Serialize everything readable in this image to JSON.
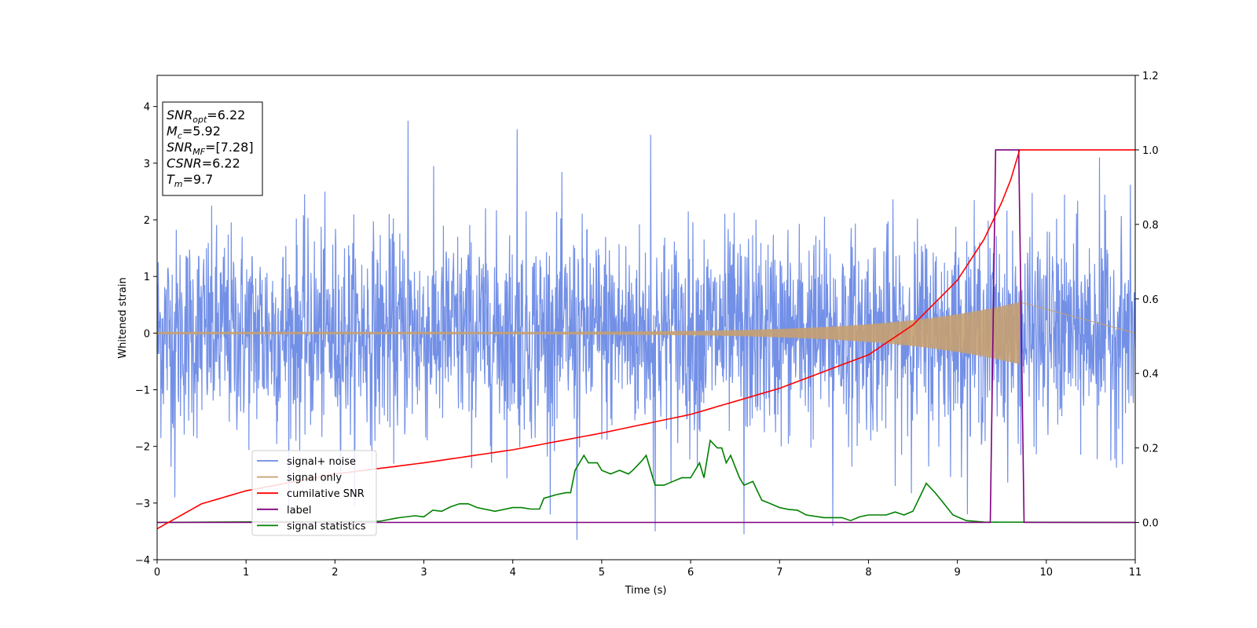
{
  "chart_data": {
    "type": "line",
    "xlabel": "Time (s)",
    "ylabel": "Whitened strain",
    "xlim": [
      0,
      11
    ],
    "ylim": [
      -4,
      4.55
    ],
    "y2lim": [
      -0.1,
      1.2
    ],
    "xticks": [
      "0",
      "1",
      "2",
      "3",
      "4",
      "5",
      "6",
      "7",
      "8",
      "9",
      "10",
      "11"
    ],
    "yticks": [
      "−4",
      "−3",
      "−2",
      "−1",
      "0",
      "1",
      "2",
      "3",
      "4"
    ],
    "y2ticks": [
      "0.0",
      "0.2",
      "0.4",
      "0.6",
      "0.8",
      "1.0",
      "1.2"
    ],
    "grid": false,
    "legend_position": "lower-left",
    "info_box": [
      {
        "base": "SNR",
        "sub": "opt",
        "value": "=6.22"
      },
      {
        "base": "M",
        "sub": "c",
        "value": "=5.92"
      },
      {
        "base": "SNR",
        "sub": "MF",
        "value": "=[7.28]"
      },
      {
        "base": "CSNR",
        "sub": "",
        "value": "=6.22"
      },
      {
        "base": "T",
        "sub": "m",
        "value": "=9.7"
      }
    ],
    "series": [
      {
        "name": "signal+ noise",
        "axis": "left",
        "color": "#6b8ae6",
        "kind": "noise",
        "x_range": [
          0,
          11
        ],
        "noise_std": 0.9,
        "peaks": [
          {
            "x": 2.82,
            "y": 3.75
          },
          {
            "x": 4.05,
            "y": 3.6
          },
          {
            "x": 5.55,
            "y": 3.5
          },
          {
            "x": 4.72,
            "y": -3.65
          },
          {
            "x": 6.6,
            "y": -3.55
          },
          {
            "x": 5.6,
            "y": -3.5
          },
          {
            "x": 0.2,
            "y": -2.9
          },
          {
            "x": 7.6,
            "y": -3.4
          },
          {
            "x": 10.6,
            "y": 3.1
          }
        ]
      },
      {
        "name": "signal only",
        "axis": "left",
        "color": "#c7a070",
        "kind": "chirp",
        "x_range": [
          0,
          9.7
        ],
        "amplitude_start": 0.02,
        "amplitude_end": 0.55
      },
      {
        "name": "cumilative SNR",
        "axis": "right",
        "color": "#ff0000",
        "points": [
          [
            0,
            -0.017
          ],
          [
            0.5,
            0.05
          ],
          [
            1,
            0.085
          ],
          [
            2,
            0.13
          ],
          [
            3,
            0.16
          ],
          [
            4,
            0.195
          ],
          [
            5,
            0.24
          ],
          [
            6,
            0.29
          ],
          [
            7,
            0.36
          ],
          [
            8,
            0.45
          ],
          [
            8.5,
            0.53
          ],
          [
            9,
            0.65
          ],
          [
            9.3,
            0.76
          ],
          [
            9.5,
            0.86
          ],
          [
            9.6,
            0.92
          ],
          [
            9.7,
            1.0
          ],
          [
            11,
            1.0
          ]
        ]
      },
      {
        "name": "label",
        "axis": "right",
        "color": "#800080",
        "points": [
          [
            0,
            0.0
          ],
          [
            9.37,
            0.0
          ],
          [
            9.43,
            1.0
          ],
          [
            9.69,
            1.0
          ],
          [
            9.75,
            0.0
          ],
          [
            11,
            0.0
          ]
        ]
      },
      {
        "name": "signal statistics",
        "axis": "right",
        "color": "#008000",
        "points": [
          [
            0,
            0.0
          ],
          [
            2.5,
            0.003
          ],
          [
            2.7,
            0.012
          ],
          [
            2.9,
            0.018
          ],
          [
            3.0,
            0.015
          ],
          [
            3.1,
            0.033
          ],
          [
            3.2,
            0.03
          ],
          [
            3.3,
            0.042
          ],
          [
            3.4,
            0.05
          ],
          [
            3.5,
            0.05
          ],
          [
            3.6,
            0.04
          ],
          [
            3.8,
            0.03
          ],
          [
            4.0,
            0.04
          ],
          [
            4.1,
            0.04
          ],
          [
            4.2,
            0.036
          ],
          [
            4.3,
            0.036
          ],
          [
            4.35,
            0.065
          ],
          [
            4.5,
            0.075
          ],
          [
            4.6,
            0.08
          ],
          [
            4.65,
            0.08
          ],
          [
            4.7,
            0.14
          ],
          [
            4.8,
            0.18
          ],
          [
            4.85,
            0.16
          ],
          [
            4.95,
            0.16
          ],
          [
            5.0,
            0.14
          ],
          [
            5.1,
            0.13
          ],
          [
            5.2,
            0.14
          ],
          [
            5.3,
            0.13
          ],
          [
            5.35,
            0.14
          ],
          [
            5.45,
            0.165
          ],
          [
            5.5,
            0.18
          ],
          [
            5.6,
            0.1
          ],
          [
            5.7,
            0.1
          ],
          [
            5.8,
            0.11
          ],
          [
            5.9,
            0.12
          ],
          [
            6.0,
            0.12
          ],
          [
            6.1,
            0.16
          ],
          [
            6.15,
            0.12
          ],
          [
            6.22,
            0.22
          ],
          [
            6.3,
            0.2
          ],
          [
            6.35,
            0.2
          ],
          [
            6.4,
            0.16
          ],
          [
            6.45,
            0.18
          ],
          [
            6.55,
            0.12
          ],
          [
            6.6,
            0.1
          ],
          [
            6.7,
            0.11
          ],
          [
            6.8,
            0.06
          ],
          [
            6.9,
            0.05
          ],
          [
            7.0,
            0.04
          ],
          [
            7.1,
            0.035
          ],
          [
            7.2,
            0.033
          ],
          [
            7.3,
            0.02
          ],
          [
            7.5,
            0.013
          ],
          [
            7.7,
            0.013
          ],
          [
            7.8,
            0.005
          ],
          [
            7.9,
            0.015
          ],
          [
            8.0,
            0.02
          ],
          [
            8.1,
            0.02
          ],
          [
            8.2,
            0.02
          ],
          [
            8.3,
            0.028
          ],
          [
            8.4,
            0.02
          ],
          [
            8.5,
            0.03
          ],
          [
            8.6,
            0.08
          ],
          [
            8.65,
            0.105
          ],
          [
            8.75,
            0.08
          ],
          [
            8.85,
            0.05
          ],
          [
            8.95,
            0.02
          ],
          [
            9.1,
            0.005
          ],
          [
            9.3,
            0.001
          ],
          [
            11,
            0.0
          ]
        ]
      }
    ]
  }
}
